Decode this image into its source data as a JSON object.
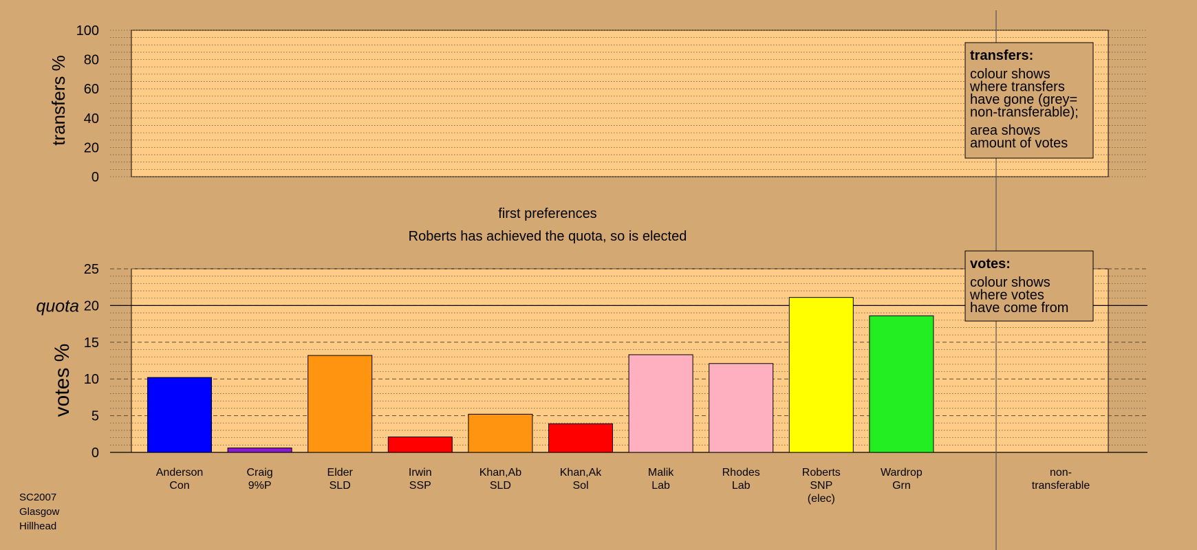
{
  "colors": {
    "background": "#d4a872",
    "plot_background": "#ffcc88",
    "legend_background": "#d4a872"
  },
  "chart_data": [
    {
      "type": "bar",
      "panel": "transfers",
      "ylabel": "transfers %",
      "ylim": [
        0,
        100
      ],
      "yticks": [
        "0",
        "20",
        "40",
        "60",
        "80",
        "100"
      ],
      "grid": true,
      "values": [],
      "legend": {
        "placement": "top-right",
        "title": "transfers:",
        "lines1": [
          "colour shows",
          "where transfers",
          "have gone (grey=",
          "non-transferable);"
        ],
        "lines2": [
          "area shows",
          "amount of votes"
        ]
      }
    },
    {
      "type": "bar",
      "panel": "votes",
      "title": "first preferences",
      "subtitle": "Roberts has achieved the quota, so is elected",
      "ylabel": "votes %",
      "ylim": [
        0,
        25
      ],
      "yticks": [
        "0",
        "5",
        "10",
        "15",
        "20",
        "25"
      ],
      "quota": 20,
      "quota_label": "quota",
      "grid": true,
      "categories": [
        {
          "lines": [
            "Anderson",
            "Con"
          ],
          "value": 10.2,
          "color": "#0000ff"
        },
        {
          "lines": [
            "Craig",
            "9%P"
          ],
          "value": 0.6,
          "color": "#8a1bd1"
        },
        {
          "lines": [
            "Elder",
            "SLD"
          ],
          "value": 13.2,
          "color": "#ff9410"
        },
        {
          "lines": [
            "Irwin",
            "SSP"
          ],
          "value": 2.1,
          "color": "#ff0000"
        },
        {
          "lines": [
            "Khan,Ab",
            "SLD"
          ],
          "value": 5.2,
          "color": "#ff9410"
        },
        {
          "lines": [
            "Khan,Ak",
            "Sol"
          ],
          "value": 3.9,
          "color": "#ff0000"
        },
        {
          "lines": [
            "Malik",
            "Lab"
          ],
          "value": 13.3,
          "color": "#ffb0c0"
        },
        {
          "lines": [
            "Rhodes",
            "Lab"
          ],
          "value": 12.1,
          "color": "#ffb0c0"
        },
        {
          "lines": [
            "Roberts",
            "SNP",
            "(elec)"
          ],
          "value": 21.1,
          "color": "#ffff00"
        },
        {
          "lines": [
            "Wardrop",
            "Grn"
          ],
          "value": 18.6,
          "color": "#22ee22"
        }
      ],
      "nontransferable": {
        "lines": [
          "non-",
          "transferable"
        ],
        "value": 0
      },
      "legend": {
        "placement": "top-right",
        "title": "votes:",
        "lines1": [
          "colour shows",
          "where votes",
          "have come from"
        ]
      }
    }
  ],
  "footer": {
    "lines": [
      "SC2007",
      "Glasgow",
      "Hillhead"
    ]
  }
}
